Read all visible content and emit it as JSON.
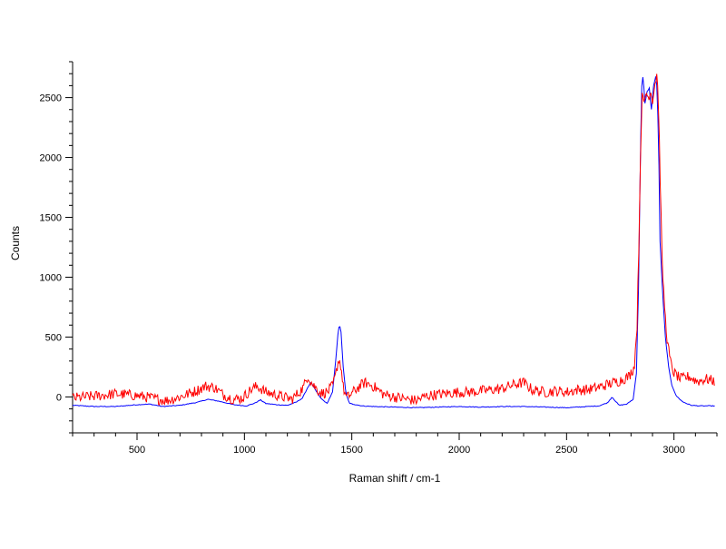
{
  "chart_data": {
    "type": "line",
    "title": "",
    "xlabel": "Raman shift / cm-1",
    "ylabel": "Counts",
    "xlim": [
      200,
      3200
    ],
    "ylim": [
      -300,
      2800
    ],
    "x_ticks": [
      500,
      1000,
      1500,
      2000,
      2500,
      3000
    ],
    "y_ticks": [
      0,
      500,
      1000,
      1500,
      2000,
      2500
    ],
    "grid": false,
    "legend": "none",
    "series": [
      {
        "color": "#0000ff",
        "points": [
          [
            200,
            -70
          ],
          [
            300,
            -80
          ],
          [
            400,
            -80
          ],
          [
            500,
            -65
          ],
          [
            560,
            -60
          ],
          [
            620,
            -80
          ],
          [
            700,
            -70
          ],
          [
            780,
            -45
          ],
          [
            830,
            -20
          ],
          [
            880,
            -35
          ],
          [
            950,
            -65
          ],
          [
            1010,
            -75
          ],
          [
            1050,
            -50
          ],
          [
            1075,
            -25
          ],
          [
            1100,
            -55
          ],
          [
            1150,
            -65
          ],
          [
            1200,
            -70
          ],
          [
            1240,
            -45
          ],
          [
            1270,
            -10
          ],
          [
            1295,
            80
          ],
          [
            1310,
            120
          ],
          [
            1330,
            60
          ],
          [
            1355,
            -10
          ],
          [
            1385,
            -55
          ],
          [
            1410,
            40
          ],
          [
            1425,
            300
          ],
          [
            1435,
            520
          ],
          [
            1442,
            610
          ],
          [
            1450,
            540
          ],
          [
            1460,
            250
          ],
          [
            1472,
            30
          ],
          [
            1490,
            -55
          ],
          [
            1550,
            -75
          ],
          [
            1600,
            -80
          ],
          [
            1700,
            -85
          ],
          [
            1800,
            -90
          ],
          [
            1900,
            -85
          ],
          [
            2000,
            -80
          ],
          [
            2100,
            -85
          ],
          [
            2200,
            -80
          ],
          [
            2300,
            -80
          ],
          [
            2400,
            -85
          ],
          [
            2500,
            -90
          ],
          [
            2600,
            -80
          ],
          [
            2650,
            -75
          ],
          [
            2690,
            -50
          ],
          [
            2712,
            0
          ],
          [
            2725,
            -30
          ],
          [
            2745,
            -70
          ],
          [
            2780,
            -60
          ],
          [
            2810,
            -20
          ],
          [
            2825,
            200
          ],
          [
            2835,
            900
          ],
          [
            2842,
            1800
          ],
          [
            2848,
            2500
          ],
          [
            2852,
            2700
          ],
          [
            2858,
            2640
          ],
          [
            2865,
            2450
          ],
          [
            2875,
            2550
          ],
          [
            2885,
            2580
          ],
          [
            2895,
            2400
          ],
          [
            2905,
            2600
          ],
          [
            2918,
            2700
          ],
          [
            2928,
            2200
          ],
          [
            2935,
            1300
          ],
          [
            2948,
            850
          ],
          [
            2960,
            500
          ],
          [
            2975,
            250
          ],
          [
            2990,
            100
          ],
          [
            3010,
            10
          ],
          [
            3040,
            -40
          ],
          [
            3080,
            -70
          ],
          [
            3120,
            -75
          ],
          [
            3160,
            -75
          ],
          [
            3190,
            -75
          ]
        ]
      },
      {
        "color": "#ff0000",
        "points": [
          [
            200,
            -10
          ],
          [
            260,
            0
          ],
          [
            320,
            10
          ],
          [
            400,
            25
          ],
          [
            480,
            15
          ],
          [
            540,
            0
          ],
          [
            600,
            -20
          ],
          [
            640,
            -30
          ],
          [
            700,
            0
          ],
          [
            760,
            40
          ],
          [
            820,
            90
          ],
          [
            860,
            80
          ],
          [
            900,
            20
          ],
          [
            950,
            -20
          ],
          [
            990,
            -10
          ],
          [
            1030,
            60
          ],
          [
            1060,
            90
          ],
          [
            1100,
            40
          ],
          [
            1140,
            20
          ],
          [
            1180,
            0
          ],
          [
            1220,
            -20
          ],
          [
            1250,
            30
          ],
          [
            1275,
            80
          ],
          [
            1295,
            180
          ],
          [
            1315,
            110
          ],
          [
            1340,
            60
          ],
          [
            1360,
            30
          ],
          [
            1385,
            40
          ],
          [
            1410,
            90
          ],
          [
            1425,
            180
          ],
          [
            1435,
            290
          ],
          [
            1442,
            310
          ],
          [
            1450,
            250
          ],
          [
            1460,
            80
          ],
          [
            1475,
            -10
          ],
          [
            1500,
            30
          ],
          [
            1530,
            80
          ],
          [
            1560,
            120
          ],
          [
            1600,
            90
          ],
          [
            1650,
            20
          ],
          [
            1700,
            0
          ],
          [
            1760,
            -20
          ],
          [
            1800,
            -30
          ],
          [
            1850,
            10
          ],
          [
            1900,
            20
          ],
          [
            1950,
            30
          ],
          [
            2000,
            40
          ],
          [
            2050,
            40
          ],
          [
            2100,
            50
          ],
          [
            2150,
            60
          ],
          [
            2200,
            70
          ],
          [
            2250,
            100
          ],
          [
            2300,
            120
          ],
          [
            2340,
            60
          ],
          [
            2400,
            40
          ],
          [
            2450,
            50
          ],
          [
            2500,
            40
          ],
          [
            2550,
            60
          ],
          [
            2600,
            60
          ],
          [
            2650,
            80
          ],
          [
            2700,
            110
          ],
          [
            2740,
            130
          ],
          [
            2790,
            170
          ],
          [
            2815,
            250
          ],
          [
            2828,
            600
          ],
          [
            2838,
            1400
          ],
          [
            2846,
            2200
          ],
          [
            2852,
            2500
          ],
          [
            2860,
            2450
          ],
          [
            2870,
            2550
          ],
          [
            2880,
            2500
          ],
          [
            2890,
            2560
          ],
          [
            2900,
            2480
          ],
          [
            2910,
            2600
          ],
          [
            2920,
            2700
          ],
          [
            2927,
            2500
          ],
          [
            2935,
            1900
          ],
          [
            2945,
            1100
          ],
          [
            2958,
            700
          ],
          [
            2970,
            450
          ],
          [
            2985,
            280
          ],
          [
            3000,
            200
          ],
          [
            3030,
            150
          ],
          [
            3070,
            170
          ],
          [
            3110,
            130
          ],
          [
            3150,
            150
          ],
          [
            3190,
            130
          ]
        ]
      }
    ]
  }
}
